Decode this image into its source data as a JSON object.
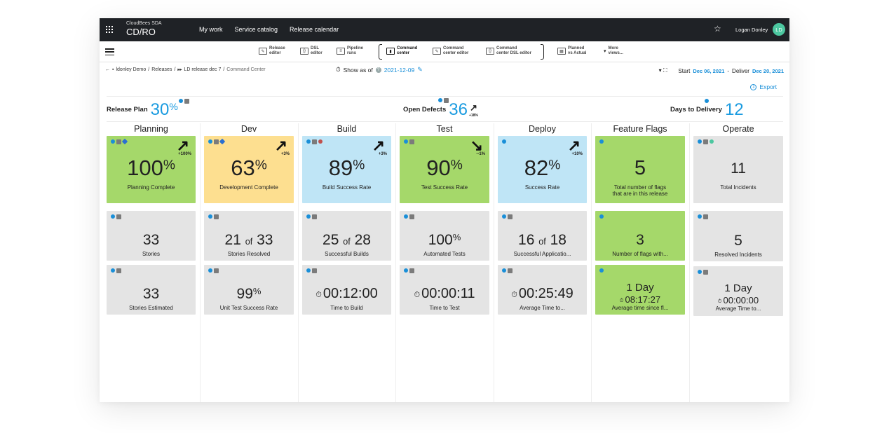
{
  "topnav": {
    "brand_top": "CloudBees SDA",
    "brand_main": "CD/RO",
    "links": [
      "My work",
      "Service catalog",
      "Release calendar"
    ],
    "user_name": "Logan Donley",
    "avatar_initials": "LD"
  },
  "toolbar": {
    "items": [
      {
        "label": "Release\neditor",
        "icon": "edit-icon"
      },
      {
        "label": "DSL\neditor",
        "icon": "code-icon"
      },
      {
        "label": "Pipeline\nruns",
        "icon": "list-icon"
      },
      {
        "label": "Command\ncenter",
        "icon": "bar-chart-icon"
      },
      {
        "label": "Command\ncenter editor",
        "icon": "edit-icon"
      },
      {
        "label": "Command\ncenter DSL editor",
        "icon": "code-icon"
      },
      {
        "label": "Planned\nvs Actual",
        "icon": "table-icon"
      },
      {
        "label": "More\nviews...",
        "icon": "caret-down-icon"
      }
    ]
  },
  "breadcrumb": {
    "project": "ldonley Demo",
    "sep1": "/",
    "releases": "Releases",
    "sep2": "/",
    "release": "LD release dec 7",
    "sep3": "/",
    "current": "Command Center"
  },
  "show_as": {
    "label": "Show as of",
    "date": "2021-12-09"
  },
  "dates": {
    "start_label": "Start",
    "start": "Dec 06, 2021",
    "separator": "-",
    "deliver_label": "Deliver",
    "deliver": "Dec 20, 2021"
  },
  "export_label": "Export",
  "kpis": {
    "release_plan": {
      "label": "Release Plan",
      "value": "30",
      "unit": "%"
    },
    "open_defects": {
      "label": "Open Defects",
      "value": "36",
      "trend": "+18%"
    },
    "days_to_delivery": {
      "label": "Days to Delivery",
      "value": "12"
    }
  },
  "columns": [
    "Planning",
    "Dev",
    "Build",
    "Test",
    "Deploy",
    "Feature Flags",
    "Operate"
  ],
  "cards": {
    "planning": {
      "c1": {
        "value": "100",
        "unit": "%",
        "label": "Planning Complete",
        "trend": "+100%"
      },
      "c2": {
        "value": "33",
        "label": "Stories"
      },
      "c3": {
        "value": "33",
        "label": "Stories Estimated"
      }
    },
    "dev": {
      "c1": {
        "value": "63",
        "unit": "%",
        "label": "Development Complete",
        "trend": "+3%"
      },
      "c2": {
        "a": "21",
        "of": "of",
        "b": "33",
        "label": "Stories Resolved"
      },
      "c3": {
        "value": "99",
        "unit": "%",
        "label": "Unit Test Success Rate"
      }
    },
    "build": {
      "c1": {
        "value": "89",
        "unit": "%",
        "label": "Build Success Rate",
        "trend": "+3%"
      },
      "c2": {
        "a": "25",
        "of": "of",
        "b": "28",
        "label": "Successful Builds"
      },
      "c3": {
        "value": "00:12:00",
        "label": "Time to Build"
      }
    },
    "test": {
      "c1": {
        "value": "90",
        "unit": "%",
        "label": "Test Success Rate",
        "trend": "--1%"
      },
      "c2": {
        "value": "100",
        "unit": "%",
        "label": "Automated Tests"
      },
      "c3": {
        "value": "00:00:11",
        "label": "Time to Test"
      }
    },
    "deploy": {
      "c1": {
        "value": "82",
        "unit": "%",
        "label": "Success Rate",
        "trend": "+10%"
      },
      "c2": {
        "a": "16",
        "of": "of",
        "b": "18",
        "label": "Successful Applicatio..."
      },
      "c3": {
        "value": "00:25:49",
        "label": "Average Time to..."
      }
    },
    "flags": {
      "c1": {
        "value": "5",
        "label": "Total number of flags\nthat are in this release"
      },
      "c2": {
        "value": "3",
        "label": "Number of flags with..."
      },
      "c3": {
        "value": "1 Day",
        "sub": "08:17:27",
        "label": "Average time since fl..."
      }
    },
    "operate": {
      "c1": {
        "value": "11",
        "label": "Total Incidents"
      },
      "c2": {
        "value": "5",
        "label": "Resolved Incidents"
      },
      "c3": {
        "value": "1 Day",
        "sub": "00:00:00",
        "label": "Average Time to..."
      }
    }
  },
  "colors": {
    "green": "#a5d86a",
    "yellow": "#fddf90",
    "blue": "#bfe5f6",
    "grey": "#e4e4e4",
    "accent": "#1a9be0"
  }
}
